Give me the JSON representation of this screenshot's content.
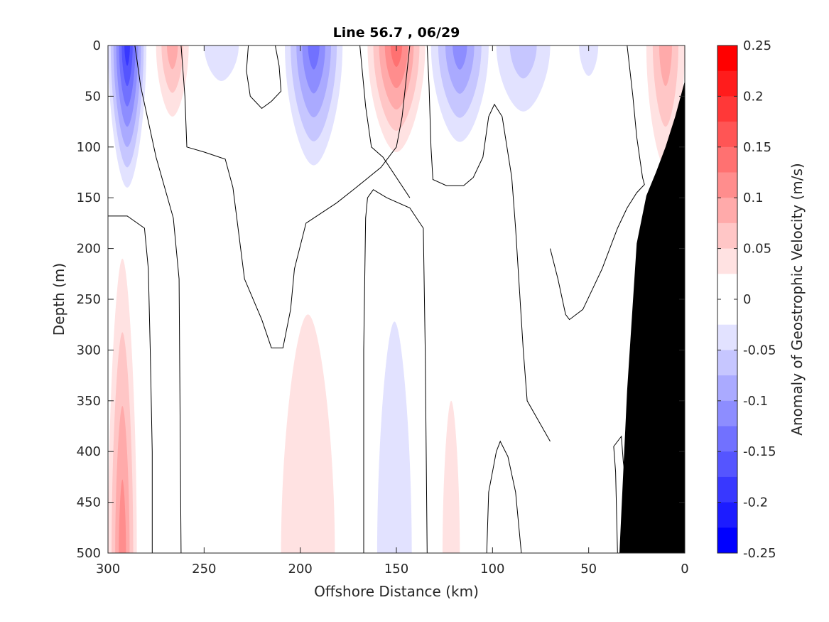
{
  "chart_data": {
    "type": "heatmap",
    "title": "Line 56.7 , 06/29",
    "xlabel": "Offshore Distance (km)",
    "ylabel": "Depth (m)",
    "colorbar_label": "Anomaly of Geostrophic Velocity (m/s)",
    "xlim": [
      300,
      0
    ],
    "ylim": [
      0,
      500
    ],
    "x_reversed": true,
    "y_reversed": true,
    "x_ticks": [
      300,
      250,
      200,
      150,
      100,
      50,
      0
    ],
    "y_ticks": [
      0,
      50,
      100,
      150,
      200,
      250,
      300,
      350,
      400,
      450,
      500
    ],
    "colorbar_ticks": [
      "0.25",
      "0.2",
      "0.15",
      "0.1",
      "0.05",
      "0",
      "-0.05",
      "-0.1",
      "-0.15",
      "-0.2",
      "-0.25"
    ],
    "colorbar_levels": [
      {
        "lo": 0.225,
        "hi": 0.25,
        "color": "#ff0000"
      },
      {
        "lo": 0.2,
        "hi": 0.225,
        "color": "#ff1c1c"
      },
      {
        "lo": 0.175,
        "hi": 0.2,
        "color": "#ff3838"
      },
      {
        "lo": 0.15,
        "hi": 0.175,
        "color": "#ff5555"
      },
      {
        "lo": 0.125,
        "hi": 0.15,
        "color": "#ff7171"
      },
      {
        "lo": 0.1,
        "hi": 0.125,
        "color": "#ff8d8d"
      },
      {
        "lo": 0.075,
        "hi": 0.1,
        "color": "#ffaaaa"
      },
      {
        "lo": 0.05,
        "hi": 0.075,
        "color": "#ffc6c6"
      },
      {
        "lo": 0.025,
        "hi": 0.05,
        "color": "#ffe2e2"
      },
      {
        "lo": 0.0,
        "hi": 0.025,
        "color": "#ffffff"
      },
      {
        "lo": -0.025,
        "hi": 0.0,
        "color": "#ffffff"
      },
      {
        "lo": -0.05,
        "hi": -0.025,
        "color": "#e2e2ff"
      },
      {
        "lo": -0.075,
        "hi": -0.05,
        "color": "#c6c6ff"
      },
      {
        "lo": -0.1,
        "hi": -0.075,
        "color": "#aaaaff"
      },
      {
        "lo": -0.125,
        "hi": -0.1,
        "color": "#8d8dff"
      },
      {
        "lo": -0.15,
        "hi": -0.125,
        "color": "#7171ff"
      },
      {
        "lo": -0.175,
        "hi": -0.15,
        "color": "#5555ff"
      },
      {
        "lo": -0.2,
        "hi": -0.175,
        "color": "#3838ff"
      },
      {
        "lo": -0.225,
        "hi": -0.2,
        "color": "#1c1cff"
      },
      {
        "lo": -0.25,
        "hi": -0.225,
        "color": "#0000ff"
      }
    ],
    "features": [
      {
        "sign": "neg",
        "peak": -0.2,
        "x": [
          300,
          280
        ],
        "depth": [
          0,
          140
        ]
      },
      {
        "sign": "pos",
        "peak": 0.1,
        "x": [
          275,
          258
        ],
        "depth": [
          0,
          70
        ]
      },
      {
        "sign": "neg",
        "peak": -0.05,
        "x": [
          250,
          232
        ],
        "depth": [
          0,
          35
        ]
      },
      {
        "sign": "neg",
        "peak": -0.15,
        "x": [
          208,
          178
        ],
        "depth": [
          0,
          118
        ]
      },
      {
        "sign": "pos",
        "peak": 0.15,
        "x": [
          165,
          135
        ],
        "depth": [
          0,
          105
        ]
      },
      {
        "sign": "neg",
        "peak": -0.125,
        "x": [
          132,
          102
        ],
        "depth": [
          0,
          95
        ]
      },
      {
        "sign": "neg",
        "peak": -0.075,
        "x": [
          98,
          70
        ],
        "depth": [
          0,
          65
        ]
      },
      {
        "sign": "neg",
        "peak": -0.05,
        "x": [
          55,
          45
        ],
        "depth": [
          0,
          30
        ]
      },
      {
        "sign": "pos",
        "peak": 0.1,
        "x": [
          20,
          0
        ],
        "depth": [
          0,
          120
        ]
      },
      {
        "sign": "pos",
        "peak": 0.125,
        "x": [
          300,
          285
        ],
        "depth": [
          210,
          500
        ]
      },
      {
        "sign": "pos",
        "peak": 0.05,
        "x": [
          210,
          182
        ],
        "depth": [
          265,
          500
        ]
      },
      {
        "sign": "neg",
        "peak": -0.05,
        "x": [
          160,
          142
        ],
        "depth": [
          272,
          500
        ]
      },
      {
        "sign": "pos",
        "peak": 0.05,
        "x": [
          126,
          117
        ],
        "depth": [
          350,
          500
        ]
      }
    ],
    "bathymetry": {
      "x": [
        34,
        30,
        25,
        20,
        15,
        10,
        5,
        0
      ],
      "depth": [
        500,
        340,
        195,
        148,
        125,
        100,
        70,
        35
      ]
    }
  }
}
